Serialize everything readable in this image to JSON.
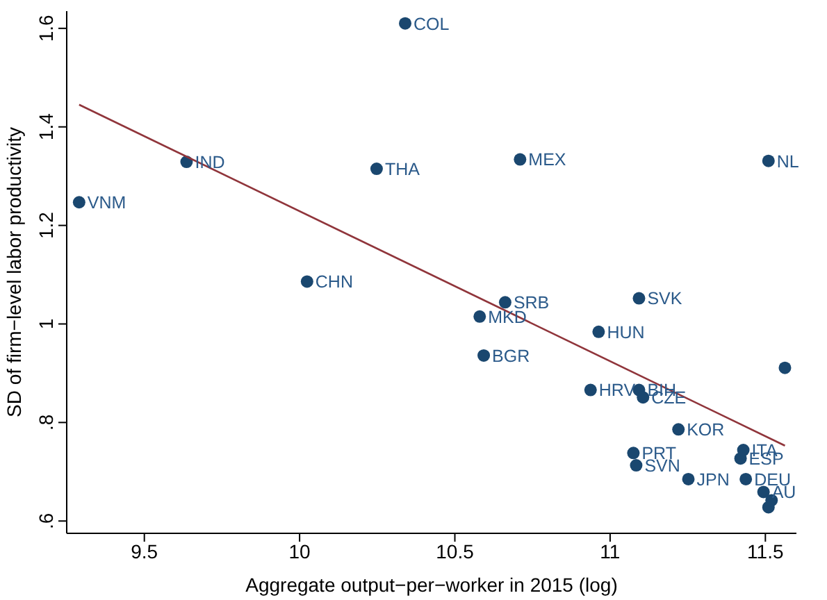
{
  "chart_data": {
    "type": "scatter",
    "xlabel": "Aggregate output−per−worker in 2015 (log)",
    "ylabel": "SD of firm−level labor productivity",
    "xlim": [
      9.25,
      11.6
    ],
    "ylim": [
      0.575,
      1.635
    ],
    "xticks": [
      9.5,
      10,
      10.5,
      11,
      11.5
    ],
    "yticks": [
      {
        "value": 0.6,
        "label": ".6"
      },
      {
        "value": 0.8,
        "label": ".8"
      },
      1,
      1.2,
      1.4,
      1.6
    ],
    "series": [
      {
        "marker": "circle",
        "color": "#1a476f",
        "x": [
          9.29,
          9.636,
          10.024,
          10.248,
          10.34,
          10.58,
          10.593,
          10.662,
          10.71,
          10.937,
          10.963,
          11.075,
          11.084,
          11.093,
          11.093,
          11.106,
          11.22,
          11.252,
          11.416,
          11.42,
          11.429,
          11.437,
          11.494,
          11.51,
          11.51,
          11.52,
          11.563
        ],
        "values": [
          1.247,
          1.329,
          1.086,
          1.315,
          1.61,
          1.015,
          0.936,
          1.044,
          1.334,
          0.866,
          0.984,
          0.738,
          0.713,
          0.866,
          1.052,
          0.851,
          0.786,
          0.685,
          null,
          0.727,
          0.744,
          0.685,
          0.659,
          1.331,
          0.628,
          0.642,
          0.911
        ]
      },
      {
        "type": "line",
        "marker": "none",
        "color": "#90353b",
        "x": [
          9.29,
          11.563
        ],
        "values": [
          1.445,
          0.753
        ]
      }
    ],
    "annotations": [
      {
        "text": "VNM",
        "x": 9.29,
        "y": 1.247
      },
      {
        "text": "IND",
        "x": 9.636,
        "y": 1.329
      },
      {
        "text": "CHN",
        "x": 10.024,
        "y": 1.086
      },
      {
        "text": "THA",
        "x": 10.248,
        "y": 1.315
      },
      {
        "text": "COL",
        "x": 10.34,
        "y": 1.61
      },
      {
        "text": "MKD",
        "x": 10.58,
        "y": 1.015
      },
      {
        "text": "BGR",
        "x": 10.593,
        "y": 0.936
      },
      {
        "text": "SRB",
        "x": 10.662,
        "y": 1.044
      },
      {
        "text": "MEX",
        "x": 10.71,
        "y": 1.334
      },
      {
        "text": "HRV",
        "x": 10.937,
        "y": 0.866
      },
      {
        "text": "HUN",
        "x": 10.963,
        "y": 0.984
      },
      {
        "text": "PRT",
        "x": 11.075,
        "y": 0.738
      },
      {
        "text": "SVN",
        "x": 11.084,
        "y": 0.713
      },
      {
        "text": "BIH",
        "x": 11.093,
        "y": 0.866
      },
      {
        "text": "SVK",
        "x": 11.093,
        "y": 1.052
      },
      {
        "text": "CZE",
        "x": 11.106,
        "y": 0.851
      },
      {
        "text": "KOR",
        "x": 11.22,
        "y": 0.786
      },
      {
        "text": "JPN",
        "x": 11.252,
        "y": 0.685
      },
      {
        "text": "ITA",
        "x": 11.429,
        "y": 0.744
      },
      {
        "text": "ESP",
        "x": 11.42,
        "y": 0.727
      },
      {
        "text": "DEU",
        "x": 11.437,
        "y": 0.685
      },
      {
        "text": "AU",
        "x": 11.494,
        "y": 0.659
      },
      {
        "text": "NL",
        "x": 11.51,
        "y": 1.331
      }
    ]
  }
}
